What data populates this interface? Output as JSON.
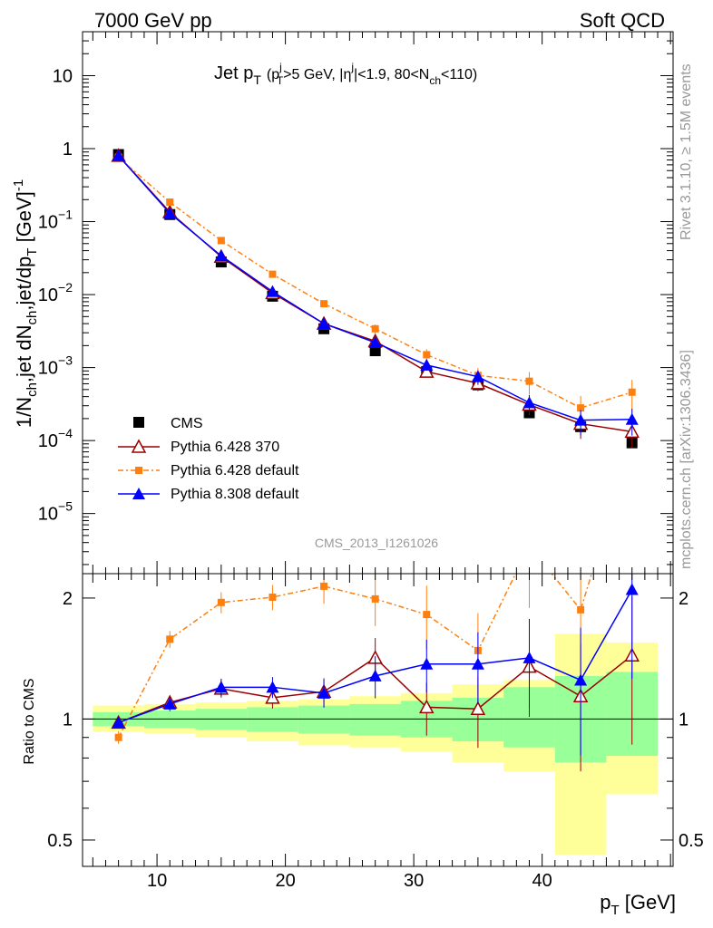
{
  "header": {
    "left": "7000 GeV pp",
    "right": "Soft QCD"
  },
  "side_labels": {
    "rivet": "Rivet 3.1.10, ≥ 1.5M events",
    "mcplots": "mcplots.cern.ch [arXiv:1306.3436]"
  },
  "colors": {
    "cms": "#000000",
    "py6_370": "#990000",
    "py6_default": "#ff7f0e",
    "py8_default": "#0000ff",
    "band_yellow": "#ffff99",
    "band_green": "#99ff99"
  },
  "chart_data": [
    {
      "type": "line",
      "panel": "main",
      "title": "Jet p_T (p_T^j>5 GeV, |η^j|<1.9, 80<N_ch<110)",
      "title_parts": {
        "main": "Jet p",
        "main_sub": "T",
        "cond_open": "(p",
        "cond_sup": "j",
        "cond_sub": "T",
        "cond_mid": ">5 GeV, |η",
        "eta_sup": "j",
        "cond_tail": "|<1.9, 80<N",
        "nch_sub": "ch",
        "cond_close": "<110)"
      },
      "watermark": "CMS_2013_I1261026",
      "ylabel": "1/N_ch,jet dN_ch,jet/dp_T [GeV]^-1",
      "ylabel_parts": {
        "a": "1/N",
        "a_sub": "ch",
        "b": ",jet dN",
        "b_sub": "ch",
        "c": ",jet/dp",
        "c_sub": "T",
        "d": " [GeV]",
        "d_sup": "-1"
      },
      "yscale": "log",
      "ylim": [
        1.5e-06,
        40
      ],
      "xlim": [
        4.2,
        50.2
      ],
      "yticks": [
        {
          "value": 10,
          "base": "10",
          "exp": ""
        },
        {
          "value": 1,
          "base": "1",
          "exp": ""
        },
        {
          "value": 0.1,
          "base": "10",
          "exp": "−1"
        },
        {
          "value": 0.01,
          "base": "10",
          "exp": "−2"
        },
        {
          "value": 0.001,
          "base": "10",
          "exp": "−3"
        },
        {
          "value": 0.0001,
          "base": "10",
          "exp": "−4"
        },
        {
          "value": 1e-05,
          "base": "10",
          "exp": "−5"
        }
      ],
      "x": [
        7,
        11,
        15,
        19,
        23,
        27,
        31,
        35,
        39,
        43,
        47
      ],
      "series": [
        {
          "name": "CMS",
          "key": "cms",
          "values": [
            0.83,
            0.125,
            0.028,
            0.0095,
            0.0034,
            0.0017,
            0.00088,
            0.00058,
            0.00024,
            0.000155,
            9.3e-05
          ]
        },
        {
          "name": "Pythia 6.428 370",
          "key": "py6_370",
          "values": [
            0.8,
            0.135,
            0.033,
            0.0105,
            0.004,
            0.0023,
            0.00088,
            0.00061,
            0.00031,
            0.00017,
            0.000132
          ]
        },
        {
          "name": "Pythia 6.428 default",
          "key": "py6_default",
          "values": [
            0.76,
            0.185,
            0.055,
            0.019,
            0.0075,
            0.0034,
            0.0015,
            0.00078,
            0.00065,
            0.00028,
            0.00046
          ]
        },
        {
          "name": "Pythia 8.308 default",
          "key": "py8_default",
          "values": [
            0.8,
            0.13,
            0.034,
            0.011,
            0.004,
            0.0022,
            0.00108,
            0.00075,
            0.00033,
            0.00019,
            0.000195
          ]
        }
      ],
      "legend_position": "lower-left"
    },
    {
      "type": "line",
      "panel": "ratio",
      "ylabel": "Ratio to CMS",
      "xlabel": "p_T [GeV]",
      "xlabel_parts": {
        "main": "p",
        "sub": "T",
        "unit": " [GeV]"
      },
      "yscale": "log",
      "ylim": [
        0.43,
        2.3
      ],
      "xlim": [
        4.2,
        50.2
      ],
      "yticks": [
        {
          "value": 0.5,
          "label": "0.5"
        },
        {
          "value": 1,
          "label": "1"
        },
        {
          "value": 2,
          "label": "2"
        }
      ],
      "xticks": [
        {
          "value": 10,
          "label": "10"
        },
        {
          "value": 20,
          "label": "20"
        },
        {
          "value": 30,
          "label": "30"
        },
        {
          "value": 40,
          "label": "40"
        }
      ],
      "bins": [
        5,
        9,
        13,
        17,
        21,
        25,
        29,
        33,
        37,
        41,
        45,
        49
      ],
      "band_yellow": [
        [
          0.93,
          1.08
        ],
        [
          0.92,
          1.09
        ],
        [
          0.9,
          1.1
        ],
        [
          0.88,
          1.11
        ],
        [
          0.86,
          1.12
        ],
        [
          0.85,
          1.14
        ],
        [
          0.83,
          1.16
        ],
        [
          0.78,
          1.22
        ],
        [
          0.74,
          1.25
        ],
        [
          0.46,
          1.63
        ],
        [
          0.65,
          1.55
        ]
      ],
      "band_green": [
        [
          0.96,
          1.04
        ],
        [
          0.95,
          1.05
        ],
        [
          0.94,
          1.06
        ],
        [
          0.93,
          1.07
        ],
        [
          0.92,
          1.08
        ],
        [
          0.91,
          1.09
        ],
        [
          0.9,
          1.11
        ],
        [
          0.88,
          1.13
        ],
        [
          0.85,
          1.2
        ],
        [
          0.78,
          1.28
        ],
        [
          0.81,
          1.31
        ]
      ],
      "x": [
        7,
        11,
        15,
        19,
        23,
        27,
        31,
        35,
        39,
        43,
        47
      ],
      "series": [
        {
          "name": "Pythia 6.428 370",
          "key": "py6_370",
          "values": [
            0.98,
            1.1,
            1.19,
            1.13,
            1.17,
            1.42,
            1.07,
            1.06,
            1.35,
            1.14,
            1.44
          ]
        },
        {
          "name": "Pythia 6.428 default",
          "key": "py6_default",
          "values": [
            0.9,
            1.58,
            1.95,
            2.01,
            2.14,
            1.99,
            1.82,
            1.48,
            2.7,
            1.87,
            4.9
          ]
        },
        {
          "name": "Pythia 8.308 default",
          "key": "py8_default",
          "values": [
            0.98,
            1.09,
            1.2,
            1.2,
            1.16,
            1.28,
            1.37,
            1.37,
            1.42,
            1.25,
            2.1
          ]
        }
      ]
    }
  ]
}
